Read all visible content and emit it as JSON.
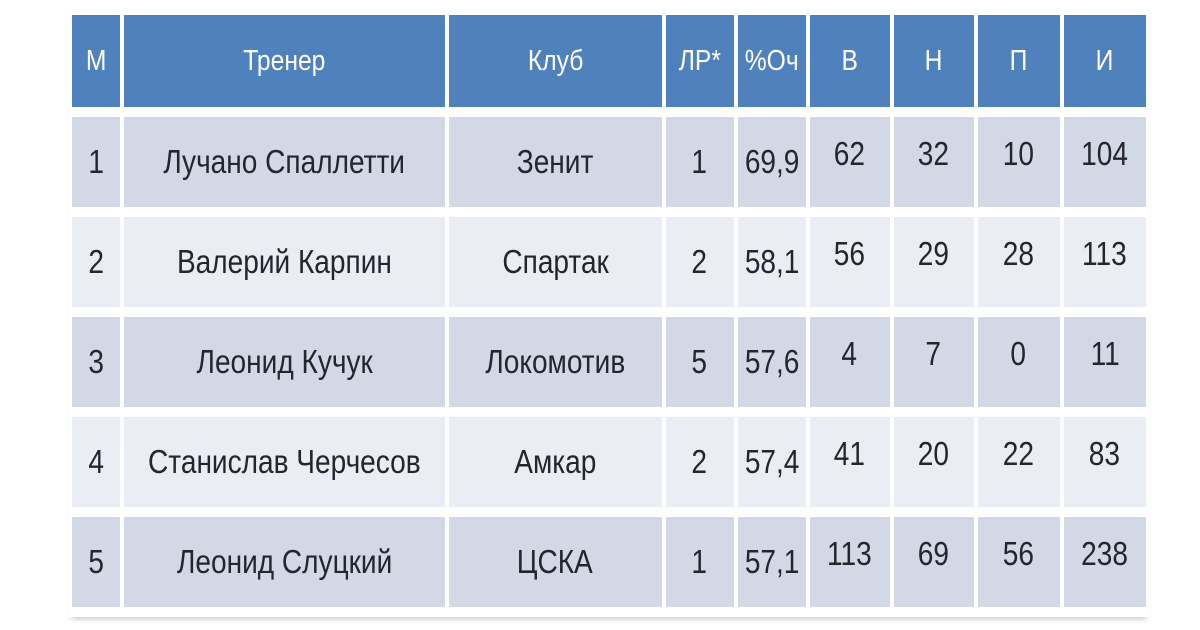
{
  "chart_data": {
    "type": "table",
    "columns": [
      "М",
      "Тренер",
      "Клуб",
      "ЛР*",
      "%Оч",
      "В",
      "Н",
      "П",
      "И"
    ],
    "rows": [
      [
        "1",
        "Лучано Спаллетти",
        "Зенит",
        "1",
        "69,9",
        "62",
        "32",
        "10",
        "104"
      ],
      [
        "2",
        "Валерий Карпин",
        "Спартак",
        "2",
        "58,1",
        "56",
        "29",
        "28",
        "113"
      ],
      [
        "3",
        "Леонид Кучук",
        "Локомотив",
        "5",
        "57,6",
        "4",
        "7",
        "0",
        "11"
      ],
      [
        "4",
        "Станислав Черчесов",
        "Амкар",
        "2",
        "57,4",
        "41",
        "20",
        "22",
        "83"
      ],
      [
        "5",
        "Леонид Слуцкий",
        "ЦСКА",
        "1",
        "57,1",
        "113",
        "69",
        "56",
        "238"
      ]
    ],
    "legend_position": "none",
    "grid": "white gaps between cells"
  },
  "colors": {
    "header_bg": "#4f81bd",
    "header_text": "#ffffff",
    "row_odd_bg": "#d2d8e6",
    "row_even_bg": "#eaedf4",
    "cell_text": "#25252e",
    "page_bg": "#ffffff"
  }
}
